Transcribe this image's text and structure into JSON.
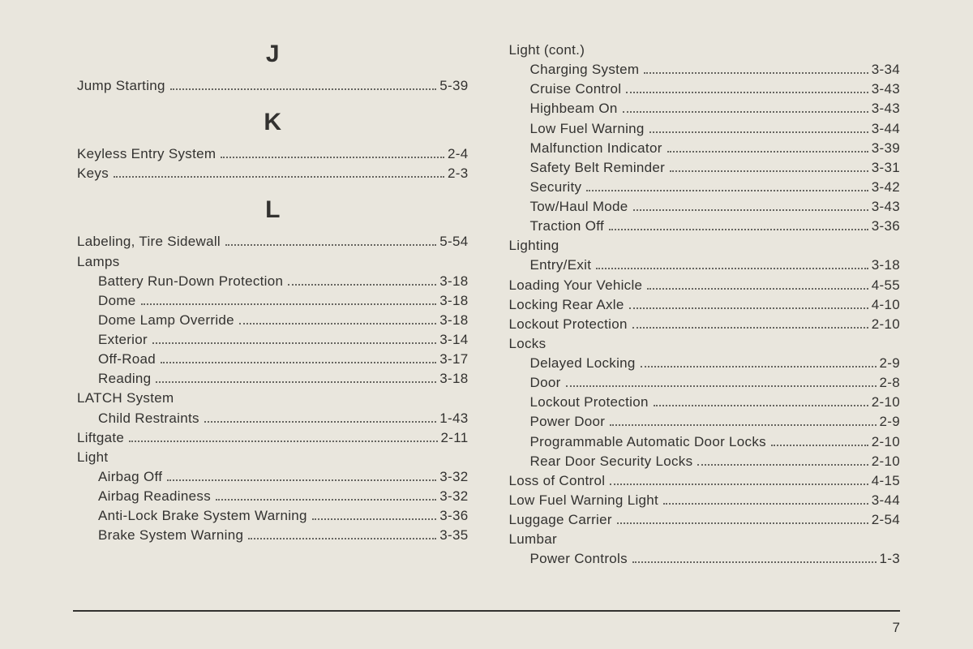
{
  "pageNumber": "7",
  "columns": [
    {
      "sections": [
        {
          "letter": "J",
          "first": true,
          "items": [
            {
              "label": "Jump Starting",
              "page": "5-39"
            }
          ]
        },
        {
          "letter": "K",
          "items": [
            {
              "label": "Keyless Entry System",
              "page": "2-4"
            },
            {
              "label": "Keys",
              "page": "2-3"
            }
          ]
        },
        {
          "letter": "L",
          "items": [
            {
              "label": "Labeling, Tire Sidewall",
              "page": "5-54"
            },
            {
              "label": "Lamps",
              "nopage": true
            },
            {
              "label": "Battery Run-Down Protection",
              "page": "3-18",
              "sub": true
            },
            {
              "label": "Dome",
              "page": "3-18",
              "sub": true
            },
            {
              "label": "Dome Lamp Override",
              "page": "3-18",
              "sub": true
            },
            {
              "label": "Exterior",
              "page": "3-14",
              "sub": true
            },
            {
              "label": "Off-Road",
              "page": "3-17",
              "sub": true
            },
            {
              "label": "Reading",
              "page": "3-18",
              "sub": true
            },
            {
              "label": "LATCH System",
              "nopage": true
            },
            {
              "label": "Child Restraints",
              "page": "1-43",
              "sub": true
            },
            {
              "label": "Liftgate",
              "page": "2-11"
            },
            {
              "label": "Light",
              "nopage": true
            },
            {
              "label": "Airbag Off",
              "page": "3-32",
              "sub": true
            },
            {
              "label": "Airbag Readiness",
              "page": "3-32",
              "sub": true
            },
            {
              "label": "Anti-Lock Brake System Warning",
              "page": "3-36",
              "sub": true
            },
            {
              "label": "Brake System Warning",
              "page": "3-35",
              "sub": true
            }
          ]
        }
      ]
    },
    {
      "sections": [
        {
          "items": [
            {
              "label": "Light (cont.)",
              "nopage": true
            },
            {
              "label": "Charging System",
              "page": "3-34",
              "sub": true
            },
            {
              "label": "Cruise Control",
              "page": "3-43",
              "sub": true
            },
            {
              "label": "Highbeam On",
              "page": "3-43",
              "sub": true
            },
            {
              "label": "Low Fuel Warning",
              "page": "3-44",
              "sub": true
            },
            {
              "label": "Malfunction Indicator",
              "page": "3-39",
              "sub": true
            },
            {
              "label": "Safety Belt Reminder",
              "page": "3-31",
              "sub": true
            },
            {
              "label": "Security",
              "page": "3-42",
              "sub": true
            },
            {
              "label": "Tow/Haul Mode",
              "page": "3-43",
              "sub": true
            },
            {
              "label": "Traction Off",
              "page": "3-36",
              "sub": true
            },
            {
              "label": "Lighting",
              "nopage": true
            },
            {
              "label": "Entry/Exit",
              "page": "3-18",
              "sub": true
            },
            {
              "label": "Loading Your Vehicle",
              "page": "4-55"
            },
            {
              "label": "Locking Rear Axle",
              "page": "4-10"
            },
            {
              "label": "Lockout Protection",
              "page": "2-10"
            },
            {
              "label": "Locks",
              "nopage": true
            },
            {
              "label": "Delayed Locking",
              "page": "2-9",
              "sub": true
            },
            {
              "label": "Door",
              "page": "2-8",
              "sub": true
            },
            {
              "label": "Lockout Protection",
              "page": "2-10",
              "sub": true
            },
            {
              "label": "Power Door",
              "page": "2-9",
              "sub": true
            },
            {
              "label": "Programmable Automatic Door Locks",
              "page": "2-10",
              "sub": true
            },
            {
              "label": "Rear Door Security Locks",
              "page": "2-10",
              "sub": true
            },
            {
              "label": "Loss of Control",
              "page": "4-15"
            },
            {
              "label": "Low Fuel Warning Light",
              "page": "3-44"
            },
            {
              "label": "Luggage Carrier",
              "page": "2-54"
            },
            {
              "label": "Lumbar",
              "nopage": true
            },
            {
              "label": "Power Controls",
              "page": "1-3",
              "sub": true
            }
          ]
        }
      ]
    }
  ]
}
